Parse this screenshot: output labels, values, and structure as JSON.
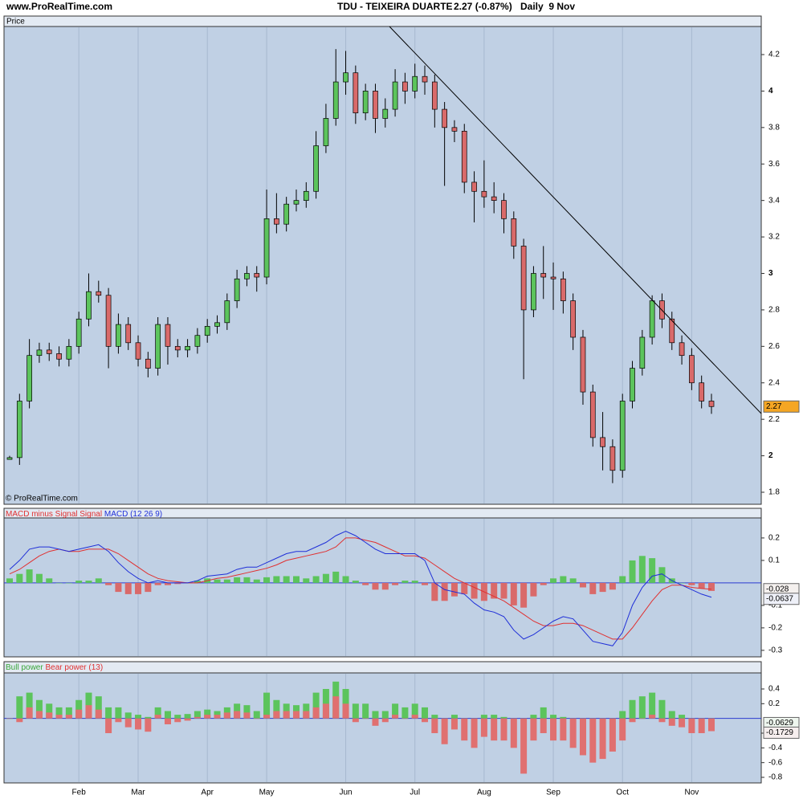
{
  "site": "www.ProRealTime.com",
  "chart_data": [
    {
      "type": "candlestick",
      "title": "TDU - TEIXEIRA DUARTE",
      "quote": "2.27 (-0.87%)",
      "period": "Daily  9 Nov",
      "panel_label": "Price",
      "watermark": "© ProRealTime.com",
      "up_color": "#5cc45c",
      "down_color": "#d96a6a",
      "categories": [
        null,
        null,
        null,
        null,
        null,
        null,
        null,
        "Feb",
        null,
        null,
        null,
        null,
        null,
        "Mar",
        null,
        null,
        null,
        null,
        null,
        null,
        "Apr",
        null,
        null,
        null,
        null,
        null,
        "May",
        null,
        null,
        null,
        null,
        null,
        null,
        null,
        "Jun",
        null,
        null,
        null,
        null,
        null,
        null,
        "Jul",
        null,
        null,
        null,
        null,
        null,
        null,
        "Aug",
        null,
        null,
        null,
        null,
        null,
        null,
        "Sep",
        null,
        null,
        null,
        null,
        null,
        null,
        "Oct",
        null,
        null,
        null,
        null,
        null,
        null,
        "Nov",
        null,
        null
      ],
      "open": [
        1.98,
        1.99,
        2.3,
        2.55,
        2.58,
        2.56,
        2.53,
        2.6,
        2.75,
        2.9,
        2.88,
        2.6,
        2.72,
        2.62,
        2.53,
        2.48,
        2.72,
        2.6,
        2.58,
        2.6,
        2.66,
        2.71,
        2.73,
        2.85,
        2.97,
        3.0,
        2.98,
        3.3,
        3.27,
        3.38,
        3.4,
        3.45,
        3.7,
        3.85,
        4.05,
        4.1,
        3.88,
        4.0,
        3.85,
        3.9,
        4.05,
        4.0,
        4.08,
        4.05,
        3.9,
        3.8,
        3.78,
        3.5,
        3.45,
        3.42,
        3.4,
        3.3,
        3.15,
        2.8,
        3.0,
        2.98,
        2.97,
        2.85,
        2.65,
        2.35,
        2.1,
        2.05,
        1.92,
        2.3,
        2.48,
        2.65,
        2.85,
        2.75,
        2.62,
        2.55,
        2.4,
        2.3
      ],
      "high": [
        2.0,
        2.34,
        2.64,
        2.62,
        2.62,
        2.6,
        2.64,
        2.79,
        3.0,
        2.96,
        2.92,
        2.78,
        2.76,
        2.66,
        2.57,
        2.76,
        2.76,
        2.64,
        2.64,
        2.7,
        2.75,
        2.77,
        2.89,
        3.02,
        3.04,
        3.04,
        3.46,
        3.44,
        3.42,
        3.46,
        3.5,
        3.78,
        3.93,
        4.23,
        4.22,
        4.14,
        4.04,
        4.04,
        3.96,
        4.12,
        4.1,
        4.15,
        4.14,
        4.09,
        3.94,
        3.84,
        3.82,
        3.56,
        3.62,
        3.5,
        3.44,
        3.34,
        3.19,
        3.04,
        3.15,
        3.06,
        3.01,
        2.89,
        2.69,
        2.39,
        2.24,
        2.09,
        2.34,
        2.52,
        2.69,
        2.88,
        2.89,
        2.79,
        2.66,
        2.59,
        2.44,
        2.34
      ],
      "low": [
        1.98,
        1.95,
        2.26,
        2.51,
        2.52,
        2.49,
        2.49,
        2.56,
        2.71,
        2.84,
        2.48,
        2.56,
        2.58,
        2.49,
        2.43,
        2.44,
        2.5,
        2.54,
        2.54,
        2.56,
        2.62,
        2.67,
        2.69,
        2.81,
        2.93,
        2.9,
        2.94,
        3.22,
        3.23,
        3.34,
        3.36,
        3.41,
        3.66,
        3.81,
        3.98,
        3.82,
        3.84,
        3.77,
        3.8,
        3.86,
        3.93,
        3.96,
        3.98,
        3.8,
        3.48,
        3.72,
        3.44,
        3.28,
        3.36,
        3.33,
        3.22,
        3.08,
        2.42,
        2.76,
        2.86,
        2.8,
        2.78,
        2.58,
        2.28,
        2.05,
        1.92,
        1.85,
        1.88,
        2.26,
        2.44,
        2.61,
        2.7,
        2.58,
        2.5,
        2.36,
        2.26,
        2.23
      ],
      "close": [
        1.99,
        2.3,
        2.55,
        2.58,
        2.56,
        2.53,
        2.6,
        2.75,
        2.9,
        2.88,
        2.6,
        2.72,
        2.62,
        2.53,
        2.48,
        2.72,
        2.6,
        2.58,
        2.6,
        2.66,
        2.71,
        2.73,
        2.85,
        2.97,
        3.0,
        2.98,
        3.3,
        3.27,
        3.38,
        3.4,
        3.45,
        3.7,
        3.85,
        4.05,
        4.1,
        3.88,
        4.0,
        3.85,
        3.9,
        4.05,
        4.0,
        4.08,
        4.05,
        3.9,
        3.8,
        3.78,
        3.5,
        3.45,
        3.42,
        3.4,
        3.3,
        3.15,
        2.8,
        3.0,
        2.98,
        2.97,
        2.85,
        2.65,
        2.35,
        2.1,
        2.05,
        1.92,
        2.3,
        2.48,
        2.65,
        2.85,
        2.75,
        2.62,
        2.55,
        2.4,
        2.3,
        2.27
      ],
      "ylim": [
        1.734,
        4.354
      ],
      "yticks": [
        1.8,
        2,
        2.2,
        2.4,
        2.6,
        2.8,
        3,
        3.2,
        3.4,
        3.6,
        3.8,
        4,
        4.2
      ]
    },
    {
      "type": "macd",
      "series": [
        {
          "name": "MACD minus Signal",
          "color": "#5cc45c",
          "negative_color": "#d96a6a",
          "values": [
            0.02,
            0.04,
            0.06,
            0.04,
            0.02,
            0.0,
            0.0,
            0.01,
            0.01,
            0.02,
            -0.01,
            -0.04,
            -0.05,
            -0.05,
            -0.04,
            -0.01,
            -0.01,
            -0.005,
            0.0,
            0.01,
            0.02,
            0.015,
            0.015,
            0.025,
            0.025,
            0.015,
            0.025,
            0.03,
            0.03,
            0.03,
            0.02,
            0.03,
            0.04,
            0.05,
            0.03,
            0.01,
            -0.01,
            -0.03,
            -0.03,
            -0.01,
            0.01,
            0.01,
            -0.01,
            -0.08,
            -0.08,
            -0.06,
            -0.05,
            -0.07,
            -0.08,
            -0.07,
            -0.07,
            -0.1,
            -0.11,
            -0.06,
            -0.01,
            0.02,
            0.03,
            0.02,
            -0.02,
            -0.05,
            -0.04,
            -0.03,
            0.03,
            0.1,
            0.12,
            0.11,
            0.07,
            0.02,
            0.0,
            -0.01,
            -0.025,
            -0.0357
          ]
        },
        {
          "name": "Signal",
          "color": "#e03030",
          "values": [
            0.04,
            0.06,
            0.09,
            0.12,
            0.14,
            0.15,
            0.14,
            0.14,
            0.15,
            0.15,
            0.15,
            0.13,
            0.1,
            0.07,
            0.04,
            0.02,
            0.01,
            0.005,
            0.0,
            0.0,
            0.01,
            0.02,
            0.025,
            0.035,
            0.045,
            0.055,
            0.065,
            0.08,
            0.1,
            0.11,
            0.12,
            0.13,
            0.14,
            0.16,
            0.2,
            0.2,
            0.19,
            0.18,
            0.16,
            0.14,
            0.12,
            0.12,
            0.11,
            0.08,
            0.05,
            0.02,
            0.0,
            -0.02,
            -0.04,
            -0.06,
            -0.08,
            -0.11,
            -0.14,
            -0.17,
            -0.19,
            -0.19,
            -0.18,
            -0.18,
            -0.19,
            -0.21,
            -0.23,
            -0.25,
            -0.25,
            -0.2,
            -0.14,
            -0.08,
            -0.03,
            -0.01,
            -0.01,
            -0.02,
            -0.025,
            -0.028
          ]
        },
        {
          "name": "MACD (12 26 9)",
          "color": "#1f2fd8",
          "values": [
            0.06,
            0.1,
            0.15,
            0.16,
            0.16,
            0.15,
            0.14,
            0.15,
            0.16,
            0.17,
            0.14,
            0.09,
            0.05,
            0.02,
            0.0,
            0.01,
            0.0,
            0.0,
            0.0,
            0.01,
            0.03,
            0.035,
            0.04,
            0.06,
            0.07,
            0.07,
            0.09,
            0.11,
            0.13,
            0.14,
            0.14,
            0.16,
            0.18,
            0.21,
            0.23,
            0.21,
            0.18,
            0.15,
            0.13,
            0.13,
            0.13,
            0.13,
            0.1,
            0.0,
            -0.03,
            -0.04,
            -0.05,
            -0.09,
            -0.12,
            -0.13,
            -0.15,
            -0.21,
            -0.25,
            -0.23,
            -0.2,
            -0.17,
            -0.15,
            -0.16,
            -0.21,
            -0.26,
            -0.27,
            -0.28,
            -0.22,
            -0.1,
            -0.02,
            0.03,
            0.04,
            0.01,
            -0.01,
            -0.03,
            -0.05,
            -0.0637
          ]
        }
      ],
      "ylim": [
        -0.329,
        0.289
      ],
      "yticks": [
        0.2,
        0.1,
        -0.1,
        -0.2,
        -0.3
      ],
      "zero_line": true
    },
    {
      "type": "power",
      "series": [
        {
          "name": "Bull power",
          "color": "#5cc45c",
          "values": [
            0.0,
            0.3,
            0.35,
            0.25,
            0.2,
            0.15,
            0.15,
            0.25,
            0.35,
            0.3,
            0.15,
            0.15,
            0.08,
            0.05,
            0.02,
            0.15,
            0.1,
            0.05,
            0.06,
            0.1,
            0.12,
            0.1,
            0.15,
            0.2,
            0.18,
            0.1,
            0.35,
            0.25,
            0.2,
            0.18,
            0.2,
            0.35,
            0.4,
            0.5,
            0.4,
            0.2,
            0.2,
            0.1,
            0.1,
            0.2,
            0.15,
            0.2,
            0.15,
            0.05,
            0.0,
            0.05,
            0.0,
            0.0,
            0.05,
            0.05,
            0.02,
            0.0,
            0.0,
            0.05,
            0.15,
            0.05,
            0.02,
            0.0,
            0.0,
            0.0,
            0.0,
            0.0,
            0.1,
            0.25,
            0.3,
            0.35,
            0.25,
            0.1,
            0.05,
            0.0,
            0.0,
            -0.0629
          ]
        },
        {
          "name": "Bear power (13)",
          "color": "#e07070",
          "values": [
            0.0,
            -0.05,
            0.15,
            0.1,
            0.08,
            0.05,
            0.05,
            0.12,
            0.18,
            0.12,
            -0.2,
            -0.05,
            -0.12,
            -0.15,
            -0.18,
            0.05,
            -0.08,
            -0.05,
            -0.03,
            0.02,
            0.05,
            0.05,
            0.08,
            0.1,
            0.08,
            0.0,
            0.05,
            0.1,
            0.1,
            0.1,
            0.1,
            0.15,
            0.2,
            0.3,
            0.2,
            -0.05,
            0.0,
            -0.1,
            -0.05,
            0.05,
            0.0,
            0.05,
            -0.05,
            -0.2,
            -0.35,
            -0.15,
            -0.3,
            -0.4,
            -0.25,
            -0.3,
            -0.3,
            -0.4,
            -0.75,
            -0.3,
            -0.2,
            -0.3,
            -0.3,
            -0.4,
            -0.5,
            -0.6,
            -0.55,
            -0.45,
            -0.3,
            -0.05,
            0.0,
            0.05,
            -0.05,
            -0.1,
            -0.12,
            -0.2,
            -0.2,
            -0.1729
          ]
        }
      ],
      "ylim": [
        -0.876,
        0.618
      ],
      "yticks": [
        0.4,
        0.2,
        -0.2,
        -0.4,
        -0.6,
        -0.8
      ],
      "zero_line": true
    }
  ]
}
